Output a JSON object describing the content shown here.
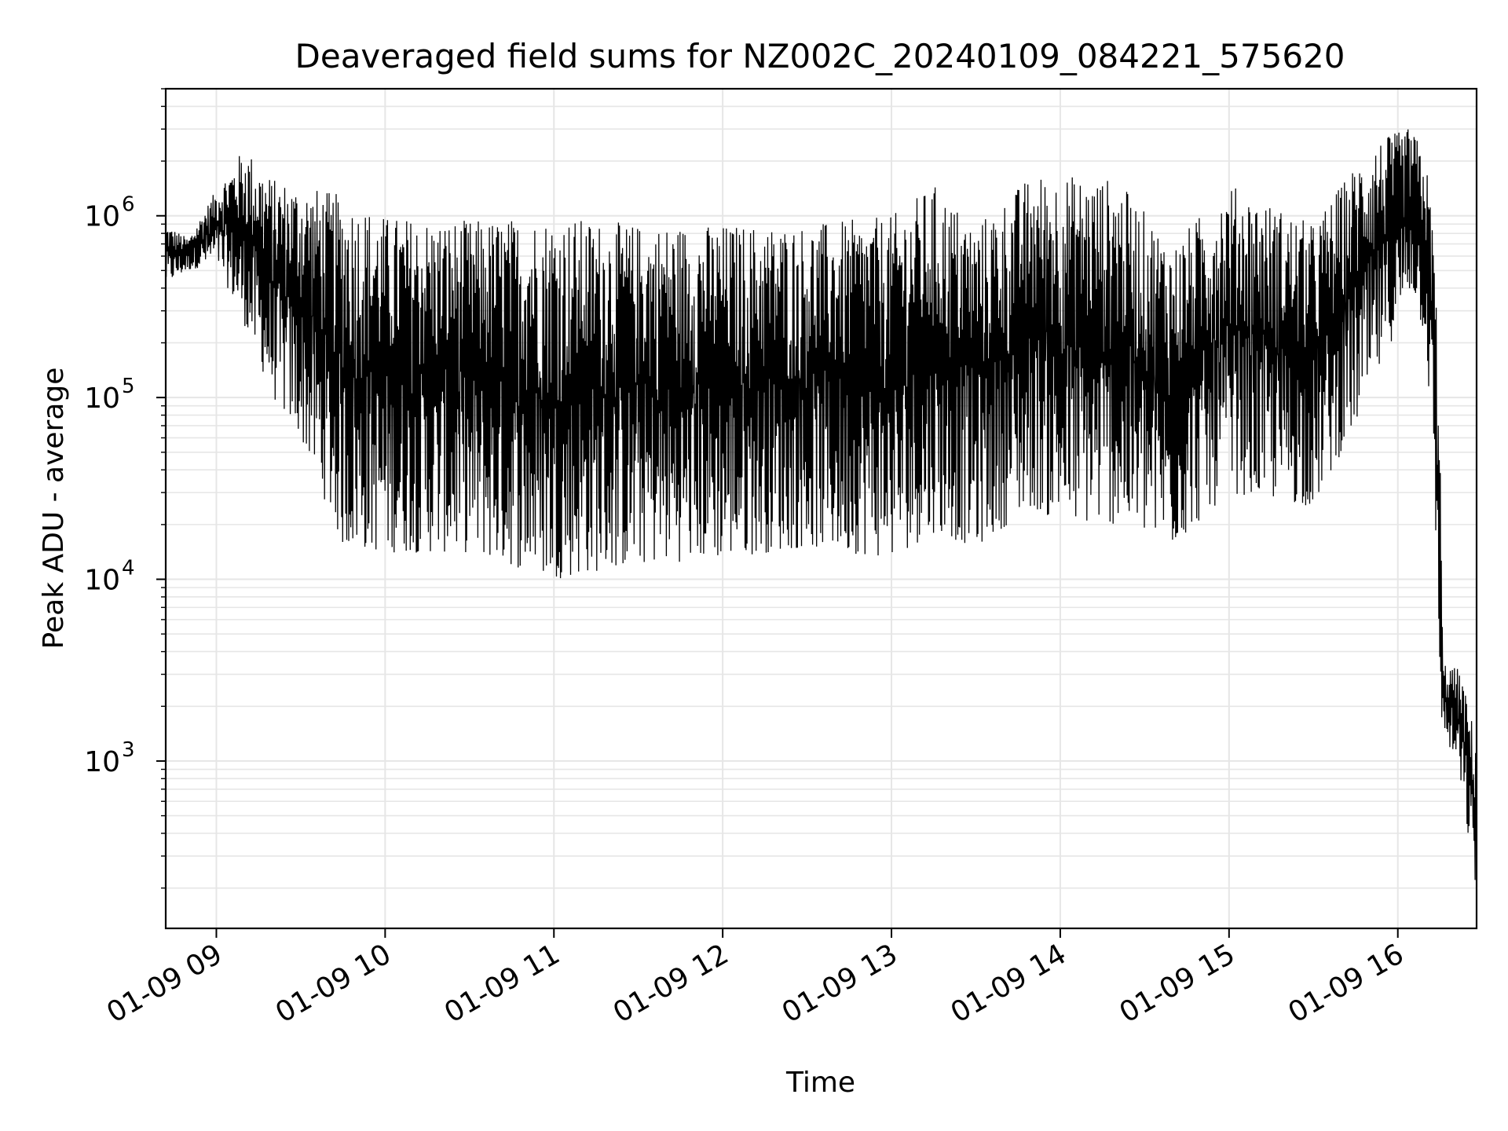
{
  "chart_data": {
    "type": "line",
    "title": "Deaveraged field sums for NZ002C_20240109_084221_575620",
    "xlabel": "Time",
    "ylabel": "Peak ADU - average",
    "yscale": "log",
    "ylim": [
      120,
      5000000
    ],
    "xlim": [
      "01-09 08:42",
      "01-09 16:28"
    ],
    "grid": true,
    "x_ticks": [
      "01-09 09",
      "01-09 10",
      "01-09 11",
      "01-09 12",
      "01-09 13",
      "01-09 14",
      "01-09 15",
      "01-09 16"
    ],
    "y_ticks": [
      {
        "value": 1000,
        "base": "10",
        "exp": "3"
      },
      {
        "value": 10000,
        "base": "10",
        "exp": "4"
      },
      {
        "value": 100000,
        "base": "10",
        "exp": "5"
      },
      {
        "value": 1000000,
        "base": "10",
        "exp": "6"
      }
    ],
    "series": [
      {
        "color": "#000000",
        "envelope": [
          {
            "t": "08:42",
            "low": 420000,
            "high": 900000
          },
          {
            "t": "08:50",
            "low": 500000,
            "high": 750000
          },
          {
            "t": "09:00",
            "low": 550000,
            "high": 1400000
          },
          {
            "t": "09:10",
            "low": 250000,
            "high": 2400000
          },
          {
            "t": "09:20",
            "low": 100000,
            "high": 1600000
          },
          {
            "t": "09:30",
            "low": 60000,
            "high": 1500000
          },
          {
            "t": "09:45",
            "low": 15000,
            "high": 1300000
          },
          {
            "t": "10:00",
            "low": 14000,
            "high": 1000000
          },
          {
            "t": "10:30",
            "low": 14000,
            "high": 950000
          },
          {
            "t": "11:00",
            "low": 10000,
            "high": 1000000
          },
          {
            "t": "11:30",
            "low": 12000,
            "high": 900000
          },
          {
            "t": "12:00",
            "low": 13000,
            "high": 900000
          },
          {
            "t": "12:30",
            "low": 15000,
            "high": 900000
          },
          {
            "t": "13:00",
            "low": 13000,
            "high": 1000000
          },
          {
            "t": "13:15",
            "low": 18000,
            "high": 1500000
          },
          {
            "t": "13:30",
            "low": 15000,
            "high": 900000
          },
          {
            "t": "13:50",
            "low": 25000,
            "high": 1700000
          },
          {
            "t": "14:00",
            "low": 20000,
            "high": 1700000
          },
          {
            "t": "14:20",
            "low": 20000,
            "high": 1600000
          },
          {
            "t": "14:40",
            "low": 15000,
            "high": 700000
          },
          {
            "t": "15:00",
            "low": 30000,
            "high": 1500000
          },
          {
            "t": "15:30",
            "low": 25000,
            "high": 900000
          },
          {
            "t": "15:50",
            "low": 100000,
            "high": 2500000
          },
          {
            "t": "16:05",
            "low": 400000,
            "high": 3100000
          },
          {
            "t": "16:10",
            "low": 200000,
            "high": 2000000
          },
          {
            "t": "16:13",
            "low": 30000,
            "high": 800000
          },
          {
            "t": "16:15",
            "low": 2000,
            "high": 60000
          },
          {
            "t": "16:16",
            "low": 1500,
            "high": 3500
          },
          {
            "t": "16:22",
            "low": 800,
            "high": 3200
          },
          {
            "t": "16:28",
            "low": 180,
            "high": 1300
          }
        ]
      }
    ]
  }
}
